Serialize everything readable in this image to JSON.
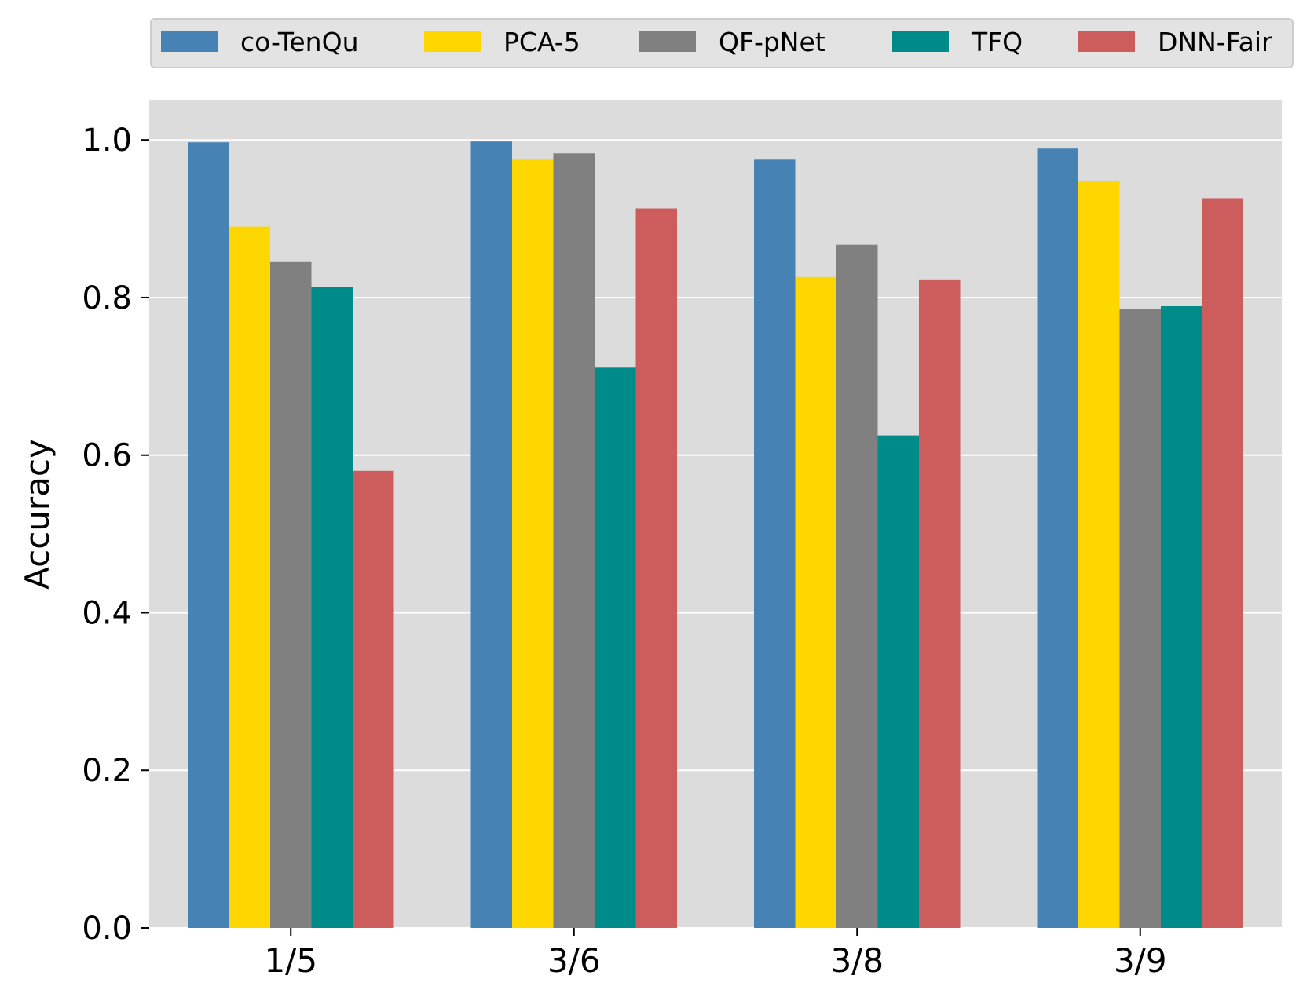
{
  "chart_data": {
    "type": "bar",
    "categories": [
      "1/5",
      "3/6",
      "3/8",
      "3/9"
    ],
    "series": [
      {
        "name": "co-TenQu",
        "color": "#4682B4",
        "values": [
          0.997,
          0.998,
          0.975,
          0.989
        ]
      },
      {
        "name": "PCA-5",
        "color": "#FFD700",
        "values": [
          0.89,
          0.975,
          0.826,
          0.948
        ]
      },
      {
        "name": "QF-pNet",
        "color": "#808080",
        "values": [
          0.845,
          0.983,
          0.867,
          0.785
        ]
      },
      {
        "name": "TFQ",
        "color": "#008B8B",
        "values": [
          0.813,
          0.711,
          0.625,
          0.789
        ]
      },
      {
        "name": "DNN-Fair",
        "color": "#CD5C5C",
        "values": [
          0.58,
          0.913,
          0.822,
          0.926
        ]
      }
    ],
    "ylabel": "Accuracy",
    "xlabel": "",
    "title": "",
    "ylim": [
      0,
      1.05
    ],
    "yticks": [
      "0.0",
      "0.2",
      "0.4",
      "0.6",
      "0.8",
      "1.0"
    ],
    "grid": "horizontal",
    "legend": "top, above plot, single row",
    "background": "#DCDCDC"
  }
}
